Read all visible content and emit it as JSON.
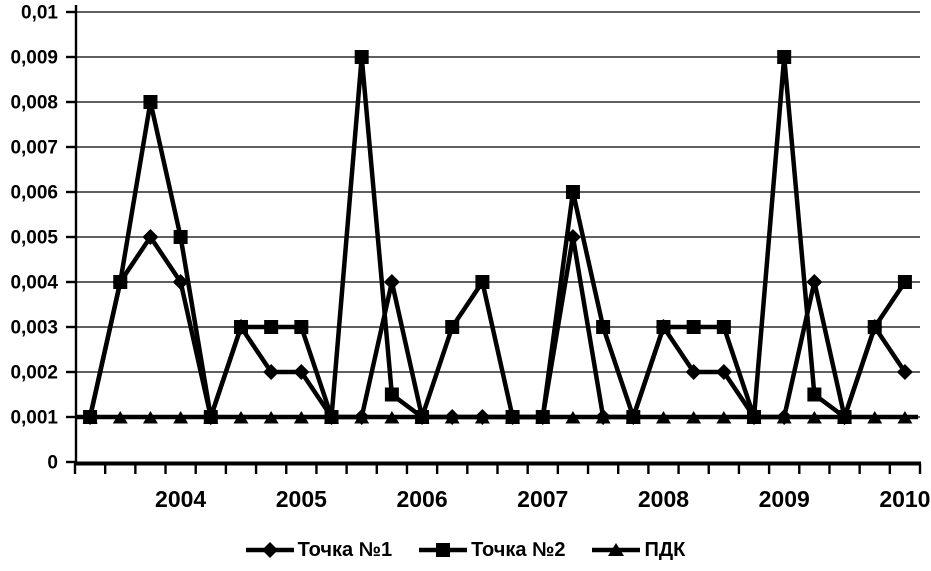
{
  "chart_data": {
    "type": "line",
    "title": "",
    "xlabel": "",
    "ylabel": "",
    "ylim": [
      0,
      0.01
    ],
    "grid": true,
    "legend_position": "bottom",
    "line_color": "#000000",
    "background_color": "#ffffff",
    "x_count": 28,
    "x_unit": "quarter",
    "y_ticks": [
      {
        "value": 0,
        "label": "0"
      },
      {
        "value": 0.001,
        "label": "0,001"
      },
      {
        "value": 0.002,
        "label": "0,002"
      },
      {
        "value": 0.003,
        "label": "0,003"
      },
      {
        "value": 0.004,
        "label": "0,004"
      },
      {
        "value": 0.005,
        "label": "0,005"
      },
      {
        "value": 0.006,
        "label": "0,006"
      },
      {
        "value": 0.007,
        "label": "0,007"
      },
      {
        "value": 0.008,
        "label": "0,008"
      },
      {
        "value": 0.009,
        "label": "0,009"
      },
      {
        "value": 0.01,
        "label": "0,01"
      }
    ],
    "year_labels": [
      {
        "label": "2004",
        "index": 3
      },
      {
        "label": "2005",
        "index": 7
      },
      {
        "label": "2006",
        "index": 11
      },
      {
        "label": "2007",
        "index": 15
      },
      {
        "label": "2008",
        "index": 19
      },
      {
        "label": "2009",
        "index": 23
      },
      {
        "label": "2010",
        "index": 27
      }
    ],
    "series": [
      {
        "id": "tochka-1",
        "name": "Точка №1",
        "marker": "diamond",
        "values": [
          0.001,
          0.004,
          0.005,
          0.004,
          0.001,
          0.003,
          0.002,
          0.002,
          0.001,
          0.001,
          0.004,
          0.001,
          0.001,
          0.001,
          0.001,
          0.001,
          0.005,
          0.001,
          0.001,
          0.003,
          0.002,
          0.002,
          0.001,
          0.001,
          0.004,
          0.001,
          0.003,
          0.002
        ]
      },
      {
        "id": "tochka-2",
        "name": "Точка №2",
        "marker": "square",
        "values": [
          0.001,
          0.004,
          0.008,
          0.005,
          0.001,
          0.003,
          0.003,
          0.003,
          0.001,
          0.009,
          0.0015,
          0.001,
          0.003,
          0.004,
          0.001,
          0.001,
          0.006,
          0.003,
          0.001,
          0.003,
          0.003,
          0.003,
          0.001,
          0.009,
          0.0015,
          0.001,
          0.003,
          0.004
        ]
      },
      {
        "id": "pdk",
        "name": "ПДК",
        "marker": "triangle",
        "extend_line_to_plot_edges": true,
        "values": [
          0.001,
          0.001,
          0.001,
          0.001,
          0.001,
          0.001,
          0.001,
          0.001,
          0.001,
          0.001,
          0.001,
          0.001,
          0.001,
          0.001,
          0.001,
          0.001,
          0.001,
          0.001,
          0.001,
          0.001,
          0.001,
          0.001,
          0.001,
          0.001,
          0.001,
          0.001,
          0.001,
          0.001
        ]
      }
    ]
  }
}
